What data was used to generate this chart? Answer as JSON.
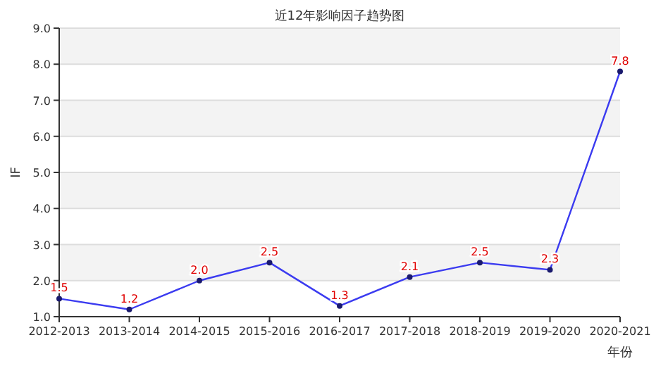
{
  "chart_data": {
    "type": "line",
    "title": "近12年影响因子趋势图",
    "xlabel": "年份",
    "ylabel": "IF",
    "categories": [
      "2012-2013",
      "2013-2014",
      "2014-2015",
      "2015-2016",
      "2016-2017",
      "2017-2018",
      "2018-2019",
      "2019-2020",
      "2020-2021"
    ],
    "series": [
      {
        "color": "#3b3bf0",
        "values": [
          1.5,
          1.2,
          2.0,
          2.5,
          1.3,
          2.1,
          2.5,
          2.3,
          7.8
        ],
        "value_labels": [
          "1.5",
          "1.2",
          "2.0",
          "2.5",
          "1.3",
          "2.1",
          "2.5",
          "2.3",
          "7.8"
        ]
      }
    ],
    "ylim": [
      1.0,
      9.0
    ],
    "yticks": [
      "1.0",
      "2.0",
      "3.0",
      "4.0",
      "5.0",
      "6.0",
      "7.0",
      "8.0",
      "9.0"
    ],
    "bands": [
      {
        "axis": "y",
        "from": 2.0,
        "to": 3.0,
        "color": "#f3f3f3"
      },
      {
        "axis": "y",
        "from": 4.0,
        "to": 5.0,
        "color": "#f3f3f3"
      },
      {
        "axis": "y",
        "from": 6.0,
        "to": 7.0,
        "color": "#f3f3f3"
      },
      {
        "axis": "y",
        "from": 8.0,
        "to": 9.0,
        "color": "#f3f3f3"
      }
    ],
    "grid": "y",
    "marker": "circle"
  }
}
